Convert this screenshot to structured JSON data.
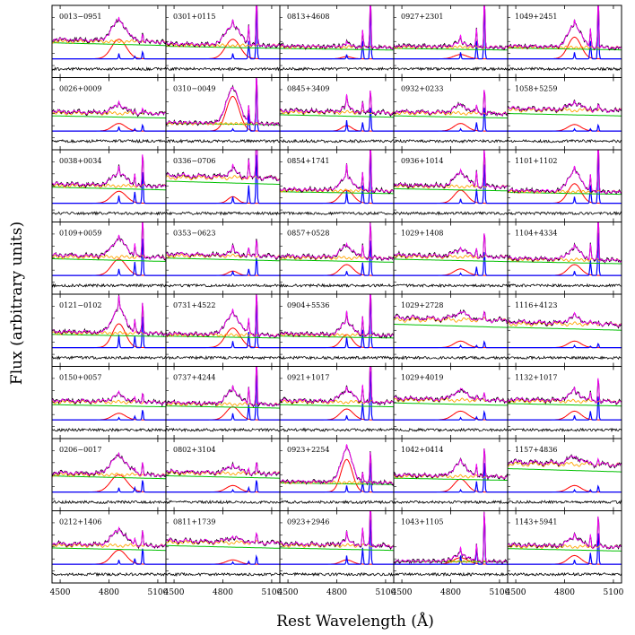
{
  "chart_data": {
    "type": "line",
    "title": "",
    "xlabel": "Rest Wavelength (Å)",
    "ylabel": "Flux (arbitrary units)",
    "xlim": [
      4450,
      5150
    ],
    "xticks": [
      4500,
      4800,
      5100
    ],
    "xtick_labels": [
      "4500",
      "4800",
      "5100"
    ],
    "grid": false,
    "legend": "none",
    "colors": {
      "data": "#000000",
      "model": "#ff00ff",
      "host": "#ffa500",
      "continuum": "#00c000",
      "broad": "#ff0000",
      "narrow": "#0000ff",
      "residual": "#000000"
    },
    "layout": {
      "rows": 8,
      "cols": 5,
      "order": "column-major"
    },
    "lines_angstrom": {
      "hbeta": 4861,
      "oiii_4959": 4959,
      "oiii_5007": 5007
    },
    "panels": [
      {
        "name": "0013−0951",
        "broad": 0.9,
        "width": 45,
        "narrow": 0.25,
        "oiii": 0.35,
        "host": 0.4,
        "cont": 0.5
      },
      {
        "name": "0026+0009",
        "broad": 0.35,
        "width": 40,
        "narrow": 0.2,
        "oiii": 0.3,
        "host": 0.5,
        "cont": 0.4
      },
      {
        "name": "0038+0034",
        "broad": 0.55,
        "width": 45,
        "narrow": 0.35,
        "oiii": 1.6,
        "host": 0.4,
        "cont": 0.5
      },
      {
        "name": "0109+0059",
        "broad": 0.75,
        "width": 45,
        "narrow": 0.3,
        "oiii": 1.9,
        "host": 0.45,
        "cont": 0.5
      },
      {
        "name": "0121−0102",
        "broad": 1.1,
        "width": 40,
        "narrow": 0.6,
        "oiii": 1.6,
        "host": 0.35,
        "cont": 0.4
      },
      {
        "name": "0150+0057",
        "broad": 0.3,
        "width": 40,
        "narrow": 0.1,
        "oiii": 0.5,
        "host": 0.5,
        "cont": 0.4
      },
      {
        "name": "0206−0017",
        "broad": 0.8,
        "width": 50,
        "narrow": 0.2,
        "oiii": 0.6,
        "host": 0.4,
        "cont": 0.5
      },
      {
        "name": "0212+1406",
        "broad": 0.65,
        "width": 45,
        "narrow": 0.2,
        "oiii": 0.8,
        "host": 0.5,
        "cont": 0.45
      },
      {
        "name": "0301+0115",
        "broad": 0.9,
        "width": 45,
        "narrow": 0.25,
        "oiii": 2.5,
        "host": 0.3,
        "cont": 0.4
      },
      {
        "name": "0310−0049",
        "broad": 1.6,
        "width": 40,
        "narrow": 0.1,
        "oiii": 2.5,
        "host": 0.1,
        "cont": 0.3
      },
      {
        "name": "0336−0706",
        "broad": 0.3,
        "width": 30,
        "narrow": 0.3,
        "oiii": 2.5,
        "host": 0.7,
        "cont": 0.6
      },
      {
        "name": "0353−0623",
        "broad": 0.2,
        "width": 30,
        "narrow": 0.2,
        "oiii": 0.9,
        "host": 0.5,
        "cont": 0.5
      },
      {
        "name": "0731+4522",
        "broad": 0.9,
        "width": 45,
        "narrow": 0.3,
        "oiii": 2.2,
        "host": 0.3,
        "cont": 0.35
      },
      {
        "name": "0737+4244",
        "broad": 0.6,
        "width": 40,
        "narrow": 0.3,
        "oiii": 2.3,
        "host": 0.4,
        "cont": 0.4
      },
      {
        "name": "0802+3104",
        "broad": 0.3,
        "width": 40,
        "narrow": 0.1,
        "oiii": 0.6,
        "host": 0.5,
        "cont": 0.45
      },
      {
        "name": "0811+1739",
        "broad": 0.2,
        "width": 40,
        "narrow": 0.1,
        "oiii": 0.4,
        "host": 0.6,
        "cont": 0.5
      },
      {
        "name": "0813+4608",
        "broad": 0.1,
        "width": 30,
        "narrow": 0.2,
        "oiii": 2.5,
        "host": 0.3,
        "cont": 0.3
      },
      {
        "name": "0845+3409",
        "broad": 0.25,
        "width": 30,
        "narrow": 0.5,
        "oiii": 1.2,
        "host": 0.5,
        "cont": 0.45
      },
      {
        "name": "0854+1741",
        "broad": 0.6,
        "width": 40,
        "narrow": 0.6,
        "oiii": 2.5,
        "host": 0.3,
        "cont": 0.35
      },
      {
        "name": "0857+0528",
        "broad": 0.5,
        "width": 40,
        "narrow": 0.2,
        "oiii": 1.8,
        "host": 0.45,
        "cont": 0.45
      },
      {
        "name": "0904+5536",
        "broad": 0.6,
        "width": 35,
        "narrow": 0.5,
        "oiii": 2.5,
        "host": 0.3,
        "cont": 0.35
      },
      {
        "name": "0921+1017",
        "broad": 0.5,
        "width": 40,
        "narrow": 0.2,
        "oiii": 2.5,
        "host": 0.5,
        "cont": 0.4
      },
      {
        "name": "0923+2254",
        "broad": 1.5,
        "width": 35,
        "narrow": 0.3,
        "oiii": 1.5,
        "host": 0.2,
        "cont": 0.3
      },
      {
        "name": "0923+2946",
        "broad": 0.2,
        "width": 35,
        "narrow": 0.4,
        "oiii": 2.3,
        "host": 0.5,
        "cont": 0.45
      },
      {
        "name": "0927+2301",
        "broad": 0.2,
        "width": 40,
        "narrow": 0.3,
        "oiii": 2.5,
        "host": 0.3,
        "cont": 0.3
      },
      {
        "name": "0932+0233",
        "broad": 0.35,
        "width": 40,
        "narrow": 0.1,
        "oiii": 1.2,
        "host": 0.5,
        "cont": 0.4
      },
      {
        "name": "0936+1014",
        "broad": 0.6,
        "width": 40,
        "narrow": 0.2,
        "oiii": 2.0,
        "host": 0.45,
        "cont": 0.4
      },
      {
        "name": "1029+1408",
        "broad": 0.3,
        "width": 40,
        "narrow": 0.1,
        "oiii": 1.2,
        "host": 0.5,
        "cont": 0.45
      },
      {
        "name": "1029+2728",
        "broad": 0.3,
        "width": 40,
        "narrow": 0.1,
        "oiii": 0.3,
        "host": 0.8,
        "cont": 0.6
      },
      {
        "name": "1029+4019",
        "broad": 0.4,
        "width": 45,
        "narrow": 0.1,
        "oiii": 0.4,
        "host": 0.55,
        "cont": 0.45
      },
      {
        "name": "1042+0414",
        "broad": 0.6,
        "width": 40,
        "narrow": 0.1,
        "oiii": 1.5,
        "host": 0.4,
        "cont": 0.4
      },
      {
        "name": "1043+1105",
        "broad": 0.3,
        "width": 45,
        "narrow": 0.4,
        "oiii": 2.5,
        "host": 0.05,
        "cont": 0.1
      },
      {
        "name": "1049+2451",
        "broad": 1.0,
        "width": 40,
        "narrow": 0.3,
        "oiii": 2.5,
        "host": 0.25,
        "cont": 0.35
      },
      {
        "name": "1058+5259",
        "broad": 0.3,
        "width": 40,
        "narrow": 0.1,
        "oiii": 0.3,
        "host": 0.6,
        "cont": 0.45
      },
      {
        "name": "1101+1102",
        "broad": 0.9,
        "width": 40,
        "narrow": 0.3,
        "oiii": 2.5,
        "host": 0.25,
        "cont": 0.35
      },
      {
        "name": "1104+4334",
        "broad": 0.5,
        "width": 40,
        "narrow": 0.2,
        "oiii": 2.2,
        "host": 0.4,
        "cont": 0.4
      },
      {
        "name": "1116+4123",
        "broad": 0.3,
        "width": 40,
        "narrow": 0.1,
        "oiii": 0.2,
        "host": 0.65,
        "cont": 0.55
      },
      {
        "name": "1132+1017",
        "broad": 0.4,
        "width": 40,
        "narrow": 0.2,
        "oiii": 1.2,
        "host": 0.5,
        "cont": 0.45
      },
      {
        "name": "1157+4836",
        "broad": 0.3,
        "width": 40,
        "narrow": 0.1,
        "oiii": 0.3,
        "host": 0.8,
        "cont": 0.6
      },
      {
        "name": "1143+5941",
        "broad": 0.4,
        "width": 40,
        "narrow": 0.2,
        "oiii": 1.6,
        "host": 0.45,
        "cont": 0.45
      }
    ]
  }
}
